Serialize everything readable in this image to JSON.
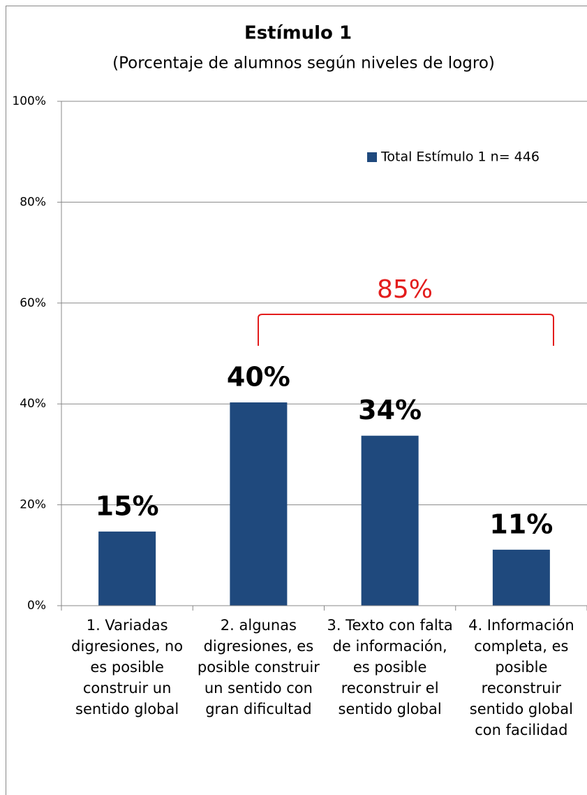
{
  "chart_data": {
    "type": "bar",
    "title": "Estímulo 1",
    "subtitle": "(Porcentaje de alumnos según niveles de logro)",
    "categories": [
      "1. Variadas digresiones, no es posible construir un sentido global",
      "2. algunas digresiones, es posible construir un sentido con gran dificultad",
      "3. Texto con falta de información, es posible reconstruir el sentido global",
      "4. Información completa, es posible reconstruir sentido global con facilidad"
    ],
    "series": [
      {
        "name": "Total Estímulo 1 n= 446",
        "color": "#1f497d",
        "values": [
          14.7,
          40.3,
          33.7,
          11.1
        ],
        "value_labels": [
          "15%",
          "40%",
          "34%",
          "11%"
        ]
      }
    ],
    "ylim": [
      0,
      100
    ],
    "yticks": [
      {
        "value": 0,
        "label": "0%"
      },
      {
        "value": 20,
        "label": "20%"
      },
      {
        "value": 40,
        "label": "40%"
      },
      {
        "value": 60,
        "label": "60%"
      },
      {
        "value": 80,
        "label": "80%"
      },
      {
        "value": 100,
        "label": "100%"
      }
    ],
    "grid": true,
    "legend": "upper right",
    "annotation": "85%"
  }
}
